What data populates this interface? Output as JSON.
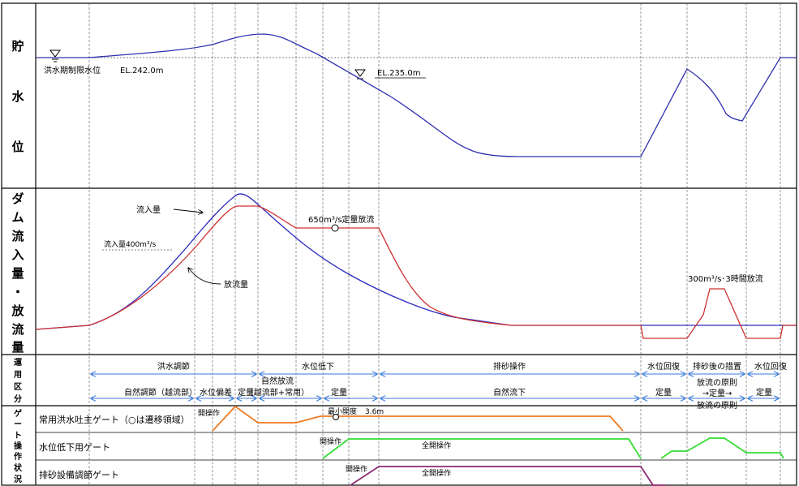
{
  "axis_labels": {
    "storage_level": [
      "貯",
      "水",
      "位"
    ],
    "flow": [
      "ダ",
      "ム",
      "流",
      "入",
      "量",
      "・",
      "放",
      "流",
      "量"
    ],
    "operation_class": [
      "運",
      "用",
      "区",
      "分"
    ],
    "gate_status": [
      "ゲ",
      "ー",
      "ト",
      "操",
      "作",
      "状",
      "況"
    ]
  },
  "water_level": {
    "flood_limit_label": "洪水期制限水位",
    "flood_limit_el": "EL.242.0m",
    "low_level_el": "EL.235.0m"
  },
  "flow": {
    "inflow_label": "流入量",
    "outflow_label": "放流量",
    "inflow_400_label": "流入量400m³/s",
    "constant_650_label": "650m³/s定量放流",
    "release_300_label": "300m³/s･3時間放流"
  },
  "operation_top": [
    "洪水調節",
    "水位低下",
    "排砂操作",
    "水位回復",
    "排砂後の措置",
    "水位回復"
  ],
  "operation_bottom": [
    "自然調節（越流部）",
    "水位偏差",
    "定量",
    "自然放流",
    "（越流部+常用）",
    "定量",
    "自然流下",
    "定量",
    "放流の原則",
    "→定量→",
    "放流の原則",
    "定量"
  ],
  "gates": {
    "main_gate_label": "常用洪水吐主ゲート（○は遷移領域）",
    "main_gate_open": "開操作",
    "main_gate_min": "最小開度",
    "main_gate_min_value": "3.6m",
    "lowering_gate_label": "水位低下用ゲート",
    "lowering_gate_open": "開操作",
    "lowering_gate_full": "全開操作",
    "sediment_gate_label": "排砂設備調節ゲート",
    "sediment_gate_open": "開操作",
    "sediment_gate_full": "全開操作"
  },
  "colors": {
    "storage_line": "#3030b0",
    "inflow_line": "#2a2ac0",
    "outflow_line": "#d03030",
    "arrow_blue": "#3a7ad8",
    "main_gate": "#ee7b22",
    "lowering_gate": "#33dd33",
    "sediment_gate": "#8b2a72"
  }
}
